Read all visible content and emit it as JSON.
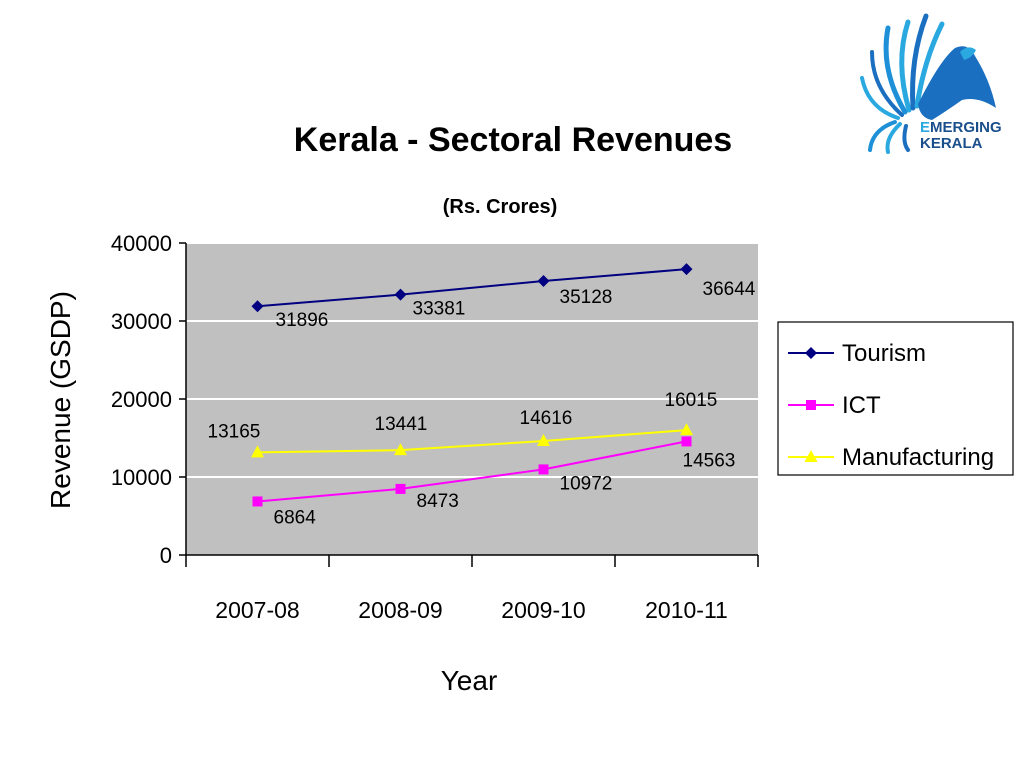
{
  "logo": {
    "line1_accent": "E",
    "line1_rest": "MERGING",
    "line2": "KERALA",
    "accent_color": "#2aa8e0",
    "text_color": "#1b4f8c"
  },
  "chart_data": {
    "type": "line",
    "title": "Kerala - Sectoral Revenues",
    "subtitle": "(Rs. Crores)",
    "xlabel": "Year",
    "ylabel": "Revenue (GSDP)",
    "categories": [
      "2007-08",
      "2008-09",
      "2009-10",
      "2010-11"
    ],
    "ylim": [
      0,
      40000
    ],
    "yticks": [
      0,
      10000,
      20000,
      30000,
      40000
    ],
    "grid": true,
    "plot_background": "#c0c0c0",
    "legend_position": "right",
    "series": [
      {
        "name": "Tourism",
        "values": [
          31896,
          33381,
          35128,
          36644
        ],
        "labels": [
          "31896",
          "33381",
          "35128",
          "36644"
        ],
        "color": "#000080",
        "marker": "diamond"
      },
      {
        "name": "ICT",
        "values": [
          6864,
          8473,
          10972,
          14563
        ],
        "labels": [
          "6864",
          "8473",
          "10972",
          "14563"
        ],
        "color": "#ff00ff",
        "marker": "square"
      },
      {
        "name": "Manufacturing",
        "values": [
          13165,
          13441,
          14616,
          16015
        ],
        "labels": [
          "13165",
          "13441",
          "14616",
          "16015"
        ],
        "color": "#ffff00",
        "marker": "triangle"
      }
    ]
  }
}
